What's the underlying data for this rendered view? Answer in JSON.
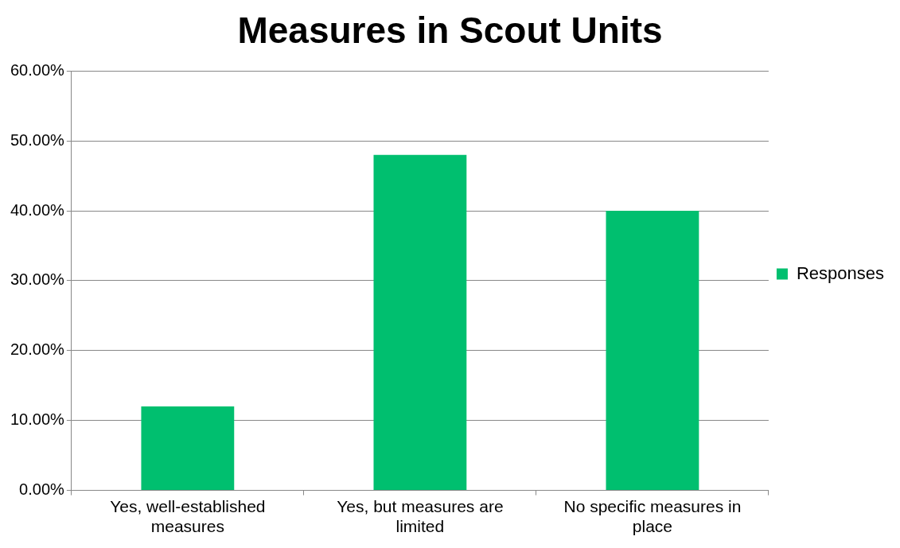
{
  "chart_data": {
    "type": "bar",
    "title": "Measures in Scout Units",
    "categories": [
      "Yes, well-established measures",
      "Yes, but measures are limited",
      "No specific measures in place"
    ],
    "series": [
      {
        "name": "Responses",
        "color": "#00bf6f",
        "values": [
          12,
          48,
          40
        ]
      }
    ],
    "ylim": [
      0,
      60
    ],
    "yticks": [
      {
        "value": 0,
        "label": "0.00%"
      },
      {
        "value": 10,
        "label": "10.00%"
      },
      {
        "value": 20,
        "label": "20.00%"
      },
      {
        "value": 30,
        "label": "30.00%"
      },
      {
        "value": 40,
        "label": "40.00%"
      },
      {
        "value": 50,
        "label": "50.00%"
      },
      {
        "value": 60,
        "label": "60.00%"
      }
    ],
    "grid": "y",
    "legend": "right"
  }
}
